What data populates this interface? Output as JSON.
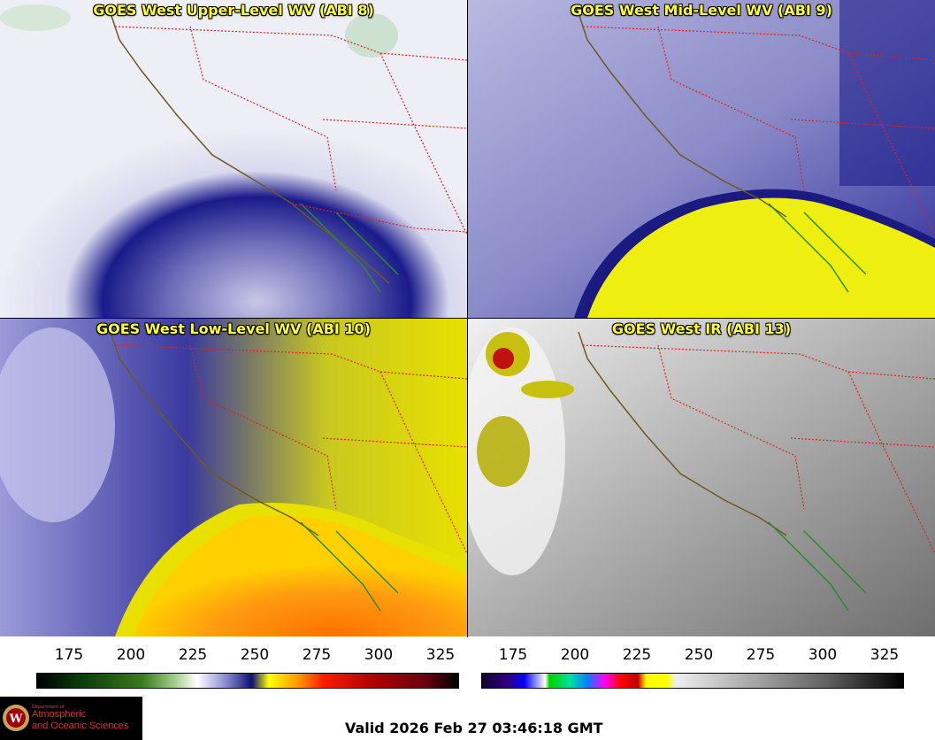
{
  "panels": [
    {
      "title": "GOES West Upper-Level WV (ABI 8)"
    },
    {
      "title": "GOES West Mid-Level WV (ABI 9)"
    },
    {
      "title": "GOES West Low-Level WV (ABI 10)"
    },
    {
      "title": "GOES West IR (ABI 13)"
    }
  ],
  "colorbar_wv": {
    "ticks": [
      "175",
      "200",
      "225",
      "250",
      "275",
      "300",
      "325"
    ]
  },
  "colorbar_ir": {
    "ticks": [
      "175",
      "200",
      "225",
      "250",
      "275",
      "300",
      "325"
    ]
  },
  "logo": {
    "dept": "Department of",
    "line1": "Atmospheric",
    "line2": "and Oceanic Sciences",
    "seal_letter": "W"
  },
  "valid_text": "Valid 2026 Feb 27 03:46:18 GMT"
}
